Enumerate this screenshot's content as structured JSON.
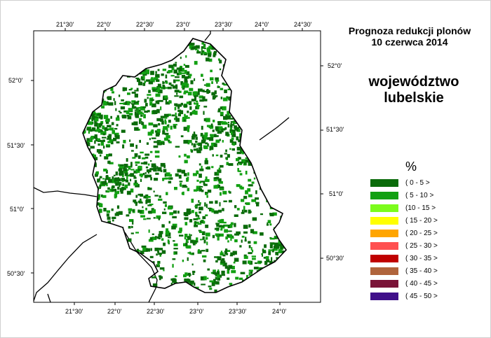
{
  "map": {
    "title_line1": "Prognoza redukcji plonów",
    "title_line2": "10 czerwca 2014",
    "region_line1": "województwo",
    "region_line2": "lubelskie",
    "top_ticks": [
      "21°30'",
      "22°0'",
      "22°30'",
      "23°0'",
      "23°30'",
      "24°0'",
      "24°30'"
    ],
    "bottom_ticks": [
      "21°30'",
      "22°0'",
      "22°30'",
      "23°0'",
      "23°30'",
      "24°0'"
    ],
    "left_ticks": [
      "52°0'",
      "51°30'",
      "51°0'",
      "50°30'"
    ],
    "right_ticks": [
      "52°0'",
      "51°30'",
      "51°0'",
      "50°30'"
    ]
  },
  "legend": {
    "unit": "%",
    "items": [
      {
        "label": "( 0 - 5 >",
        "color": "#0a6b0a"
      },
      {
        "label": "( 5 - 10 >",
        "color": "#12a012"
      },
      {
        "label": "(10 - 15 >",
        "color": "#7cfc1c"
      },
      {
        "label": "( 15 - 20 >",
        "color": "#ffff00"
      },
      {
        "label": "( 20 - 25 >",
        "color": "#ffa500"
      },
      {
        "label": "( 25 - 30 >",
        "color": "#ff5050"
      },
      {
        "label": "( 30 - 35 >",
        "color": "#c00000"
      },
      {
        "label": "( 35 - 40 >",
        "color": "#b0643c"
      },
      {
        "label": "( 40 - 45 >",
        "color": "#7a1438"
      },
      {
        "label": "( 45 - 50 >",
        "color": "#40108a"
      }
    ]
  }
}
